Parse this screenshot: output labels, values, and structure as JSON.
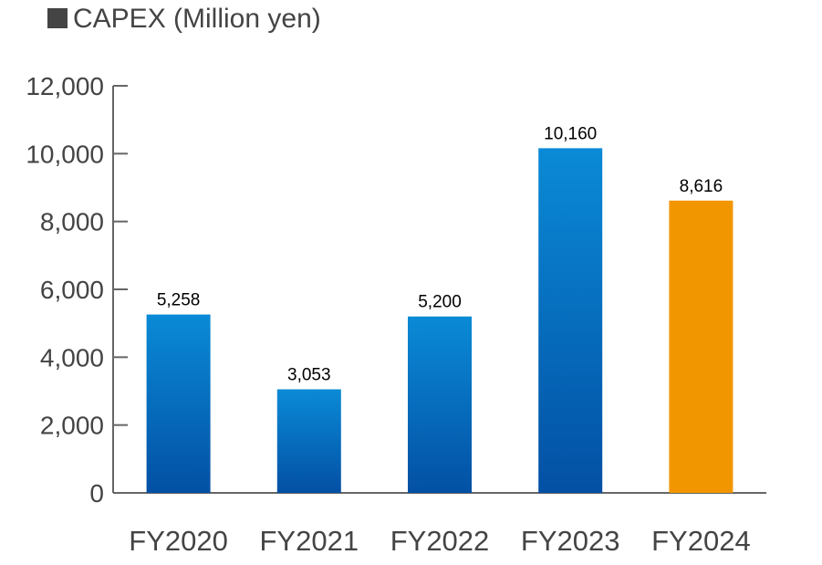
{
  "chart_data": {
    "type": "bar",
    "title": "CAPEX (Million yen)",
    "categories": [
      "FY2020",
      "FY2021",
      "FY2022",
      "FY2023",
      "FY2024"
    ],
    "values": [
      5258,
      3053,
      5200,
      10160,
      8616
    ],
    "value_labels": [
      "5,258",
      "3,053",
      "5,200",
      "10,160",
      "8,616"
    ],
    "yticks": [
      "0",
      "2,000",
      "4,000",
      "6,000",
      "8,000",
      "10,000",
      "12,000"
    ],
    "ylim": [
      0,
      12000
    ],
    "xlabel": "",
    "ylabel": "",
    "grid": false,
    "bar_colors": {
      "default_top": "#0a8ad6",
      "default_bottom": "#0350a4",
      "highlight": "#f29600"
    },
    "highlight_category": "FY2024"
  },
  "colors": {
    "axis": "#666666",
    "text": "#444444",
    "label_text": "#000000"
  }
}
